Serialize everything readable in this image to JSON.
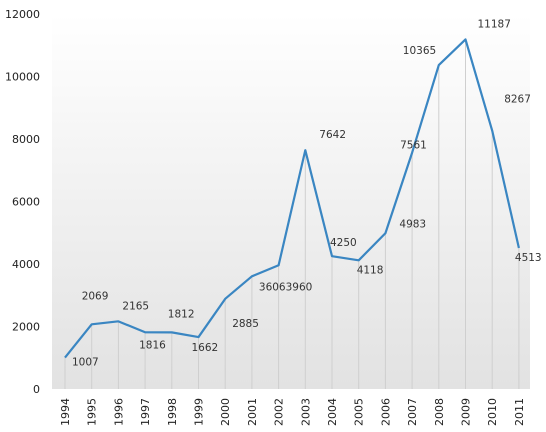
{
  "chart_data": {
    "type": "line",
    "title": "",
    "xlabel": "",
    "ylabel": "",
    "x": [
      "1994",
      "1995",
      "1996",
      "1997",
      "1998",
      "1999",
      "2000",
      "2001",
      "2002",
      "2003",
      "2004",
      "2005",
      "2006",
      "2007",
      "2008",
      "2009",
      "2010",
      "2011"
    ],
    "series": [
      {
        "values": [
          1007,
          2069,
          2165,
          1816,
          1812,
          1662,
          2885,
          3606,
          3960,
          7642,
          4250,
          4118,
          4983,
          7561,
          10365,
          11187,
          8267,
          4513
        ],
        "color": "#3a86c2"
      }
    ],
    "ylim": [
      0,
      12000
    ],
    "yticks": [
      0,
      2000,
      4000,
      6000,
      8000,
      10000,
      12000
    ],
    "grid": false,
    "legend": "none",
    "background": "gradient-grey-bottom"
  }
}
